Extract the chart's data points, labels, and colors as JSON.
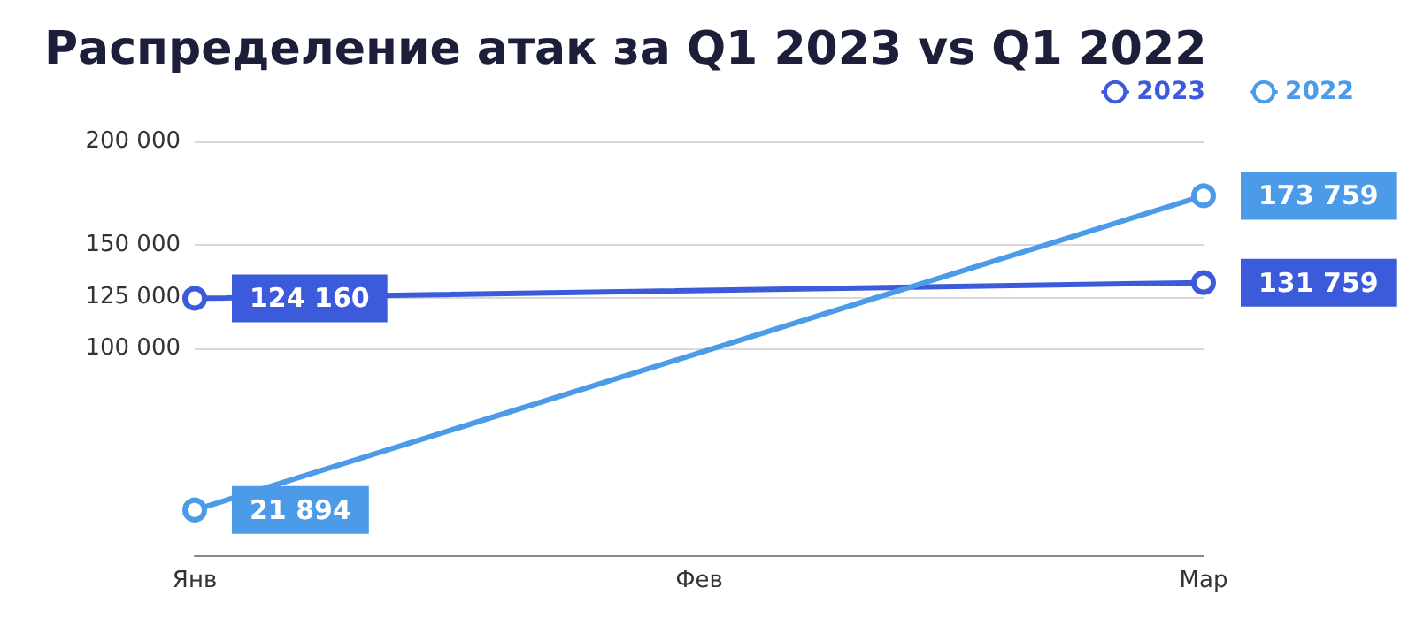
{
  "chart_data": {
    "type": "line",
    "title": "Распределение атак за Q1 2023 vs Q1 2022",
    "categories": [
      "Янв",
      "Фев",
      "Мар"
    ],
    "series": [
      {
        "name": "2023",
        "color": "#3b5bdb",
        "values": [
          124160,
          null,
          131759
        ],
        "value_labels": [
          "124 160",
          null,
          "131 759"
        ]
      },
      {
        "name": "2022",
        "color": "#4c9be8",
        "values": [
          21894,
          null,
          173759
        ],
        "value_labels": [
          "21 894",
          null,
          "173 759"
        ]
      }
    ],
    "ylim": [
      0,
      200000
    ],
    "yticks": [
      {
        "value": 100000,
        "label": "100 000"
      },
      {
        "value": 125000,
        "label": "125 000"
      },
      {
        "value": 150000,
        "label": "150 000"
      },
      {
        "value": 200000,
        "label": "200 000"
      }
    ],
    "grid": "y",
    "legend": "top right",
    "marker": "circle",
    "line_style": "solid"
  }
}
